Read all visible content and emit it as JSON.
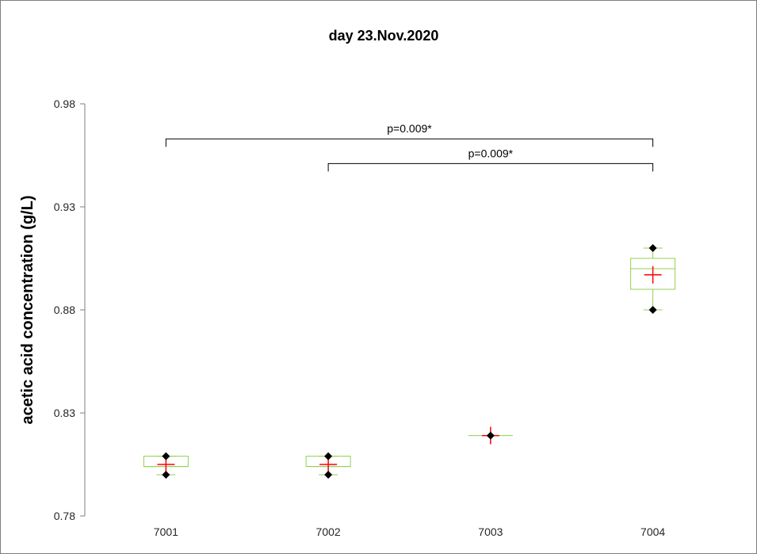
{
  "chart_data": {
    "type": "box",
    "title": "day 23.Nov.2020",
    "ylabel": "acetic acid concentration (g/L)",
    "xlabel": "",
    "ylim": [
      0.78,
      0.98
    ],
    "yticks": [
      0.78,
      0.83,
      0.88,
      0.93,
      0.98
    ],
    "ytick_labels": [
      "0.78",
      "0.83",
      "0.88",
      "0.93",
      "0.98"
    ],
    "categories": [
      "7001",
      "7002",
      "7003",
      "7004"
    ],
    "boxes": [
      {
        "category": "7001",
        "min": 0.8,
        "q1": 0.804,
        "median": 0.804,
        "q3": 0.809,
        "max": 0.809,
        "mean": 0.805,
        "points": [
          0.809,
          0.8
        ]
      },
      {
        "category": "7002",
        "min": 0.8,
        "q1": 0.804,
        "median": 0.804,
        "q3": 0.809,
        "max": 0.809,
        "mean": 0.805,
        "points": [
          0.809,
          0.8
        ]
      },
      {
        "category": "7003",
        "min": 0.819,
        "q1": 0.819,
        "median": 0.819,
        "q3": 0.819,
        "max": 0.819,
        "mean": 0.819,
        "points": [
          0.819
        ]
      },
      {
        "category": "7004",
        "min": 0.88,
        "q1": 0.89,
        "median": 0.9,
        "q3": 0.905,
        "max": 0.91,
        "mean": 0.897,
        "points": [
          0.91,
          0.88
        ]
      }
    ],
    "annotations": [
      {
        "from": "7001",
        "to": "7004",
        "text": "p=0.009*",
        "y": 0.963
      },
      {
        "from": "7002",
        "to": "7004",
        "text": "p=0.009*",
        "y": 0.951
      }
    ],
    "colors": {
      "box": "#92d050",
      "mean": "#ff0000",
      "point": "#000000",
      "axis": "#7f7f7f"
    }
  }
}
